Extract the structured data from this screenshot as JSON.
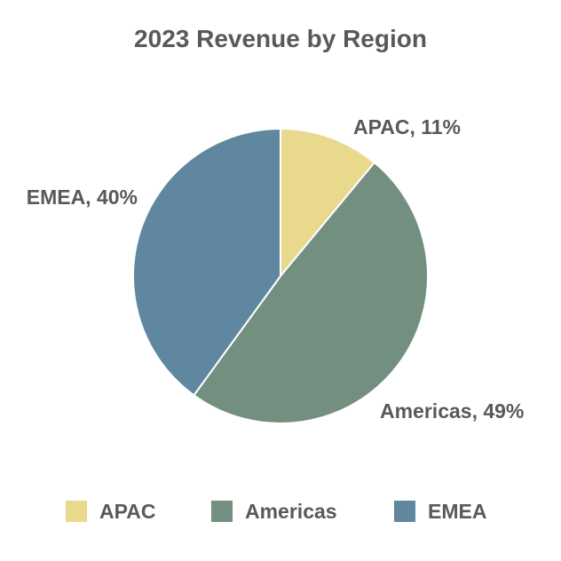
{
  "chart_data": {
    "type": "pie",
    "title": "2023 Revenue by Region",
    "categories": [
      "APAC",
      "Americas",
      "EMEA"
    ],
    "values": [
      11,
      49,
      40
    ],
    "unit": "%",
    "data_labels": [
      "APAC, 11%",
      "Americas, 49%",
      "EMEA, 40%"
    ],
    "colors": [
      "#e8d98c",
      "#738f80",
      "#5f87a0"
    ],
    "start_angle": "12 o'clock",
    "direction": "clockwise",
    "legend": {
      "position": "bottom",
      "entries": [
        "APAC",
        "Americas",
        "EMEA"
      ]
    },
    "text_color": "#595959",
    "slice_border_color": "#ffffff"
  }
}
